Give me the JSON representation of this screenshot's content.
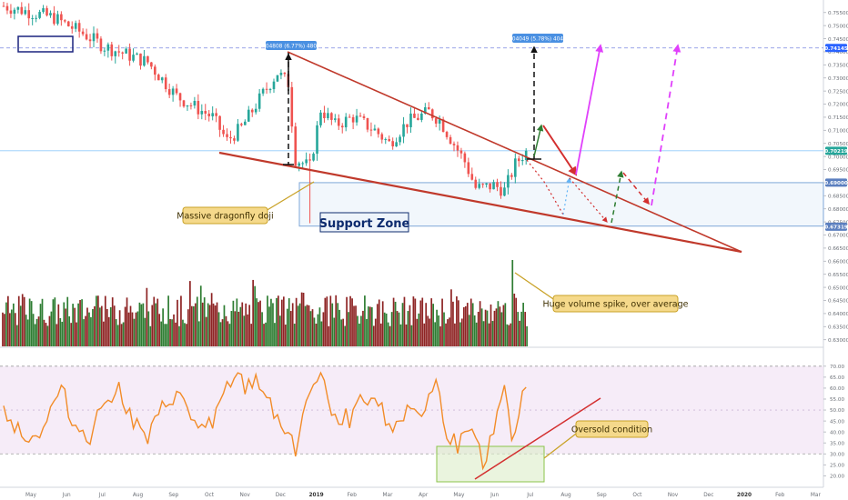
{
  "chart_data": [
    {
      "type": "candlestick",
      "panel": "price",
      "title": "",
      "x_axis_labels": [
        "May",
        "Jun",
        "Jul",
        "Aug",
        "Sep",
        "Oct",
        "Nov",
        "Dec",
        "2019",
        "Feb",
        "Mar",
        "Apr",
        "May",
        "Jun",
        "Jul",
        "Aug",
        "Sep",
        "Oct",
        "Nov",
        "Dec",
        "2020",
        "Feb",
        "Mar"
      ],
      "y_ticks": [
        "0.75500",
        "0.75000",
        "0.74500",
        "0.74000",
        "0.73500",
        "0.73000",
        "0.72500",
        "0.72000",
        "0.71500",
        "0.71000",
        "0.70500",
        "0.70000",
        "0.69500",
        "0.69000",
        "0.68500",
        "0.68000",
        "0.67500",
        "0.67000",
        "0.66500",
        "0.66000",
        "0.65500",
        "0.65000",
        "0.64500",
        "0.64000",
        "0.63500",
        "0.63000"
      ],
      "ylim": [
        0.6285,
        0.757
      ],
      "price_badges": [
        {
          "label": "0.74145",
          "value": 0.74145,
          "color": "#2962ff"
        },
        {
          "label": "0.70219",
          "value": 0.70219,
          "color": "#26a69a"
        },
        {
          "label": "0.69000",
          "value": 0.69,
          "color": "#5b7fbf"
        },
        {
          "label": "0.67319",
          "value": 0.67319,
          "color": "#5b7fbf"
        }
      ],
      "measure_labels": [
        {
          "text": "0.04808 (6.77%) 480.8"
        },
        {
          "text": "0.04049 (5.78%) 404.9"
        }
      ],
      "annotations": [
        {
          "text": "Massive dragonfly doji"
        },
        {
          "text": "Support Zone"
        },
        {
          "text": "Huge volume spike, over average"
        }
      ],
      "zones": [
        {
          "name": "Support Zone",
          "from": 0.6734,
          "to": 0.69
        }
      ],
      "colors": {
        "up": "#26a69a",
        "down": "#ef5350",
        "wedge": "#c0392b",
        "projection": "#e040fb",
        "support": "#5b9bd5"
      }
    },
    {
      "type": "bar",
      "panel": "volume",
      "colors": {
        "up": "#2e7d32",
        "down": "#8e2424"
      }
    },
    {
      "type": "line",
      "panel": "rsi",
      "y_ticks": [
        "70.00",
        "65.00",
        "60.00",
        "55.00",
        "50.00",
        "45.00",
        "40.00",
        "35.00",
        "30.00",
        "25.00",
        "20.00"
      ],
      "ylim": [
        18.5,
        72
      ],
      "upper_band": 70,
      "lower_band": 30,
      "annotations": [
        {
          "text": "Oversold condition"
        }
      ],
      "colors": {
        "line": "#f28c28",
        "band": "#e1bee7",
        "trend": "#d32f2f"
      }
    }
  ]
}
